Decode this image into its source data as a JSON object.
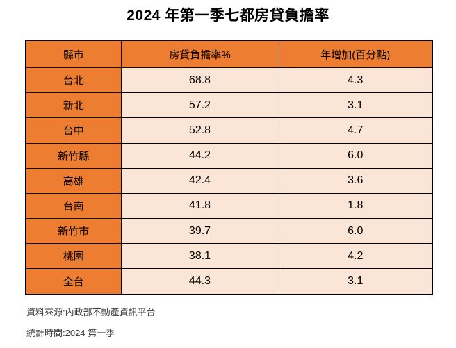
{
  "title": "2024 年第一季七都房貸負擔率",
  "colors": {
    "orange": "#ED7D31",
    "peach": "#FBE5D6",
    "border": "#000000"
  },
  "table": {
    "headers": [
      "縣市",
      "房貸負擔率%",
      "年增加(百分點)"
    ],
    "rows": [
      {
        "city": "台北",
        "rate": "68.8",
        "change": "4.3"
      },
      {
        "city": "新北",
        "rate": "57.2",
        "change": "3.1"
      },
      {
        "city": "台中",
        "rate": "52.8",
        "change": "4.7"
      },
      {
        "city": "新竹縣",
        "rate": "44.2",
        "change": "6.0"
      },
      {
        "city": "高雄",
        "rate": "42.4",
        "change": "3.6"
      },
      {
        "city": "台南",
        "rate": "41.8",
        "change": "1.8"
      },
      {
        "city": "新竹市",
        "rate": "39.7",
        "change": "6.0"
      },
      {
        "city": "桃園",
        "rate": "38.1",
        "change": "4.2"
      },
      {
        "city": "全台",
        "rate": "44.3",
        "change": "3.1"
      }
    ]
  },
  "footer": {
    "source": "資料來源:內政部不動產資訊平台",
    "period": "統計時間:2024 第一季"
  },
  "chart_data": {
    "type": "table",
    "title": "2024 年第一季七都房貸負擔率",
    "columns": [
      "縣市",
      "房貸負擔率%",
      "年增加(百分點)"
    ],
    "rows": [
      [
        "台北",
        68.8,
        4.3
      ],
      [
        "新北",
        57.2,
        3.1
      ],
      [
        "台中",
        52.8,
        4.7
      ],
      [
        "新竹縣",
        44.2,
        6.0
      ],
      [
        "高雄",
        42.4,
        3.6
      ],
      [
        "台南",
        41.8,
        1.8
      ],
      [
        "新竹市",
        39.7,
        6.0
      ],
      [
        "桃園",
        38.1,
        4.2
      ],
      [
        "全台",
        44.3,
        3.1
      ]
    ],
    "notes": [
      "資料來源:內政部不動產資訊平台",
      "統計時間:2024 第一季"
    ],
    "style": {
      "header_bg": "#ED7D31",
      "row_label_bg": "#ED7D31",
      "cell_bg": "#FBE5D6"
    }
  }
}
